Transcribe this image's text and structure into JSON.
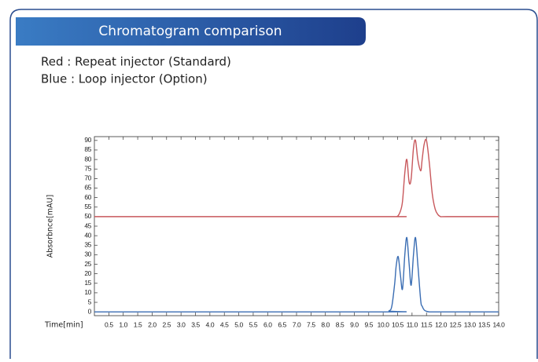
{
  "header": {
    "title": "Chromatogram comparison"
  },
  "legend_text": [
    "Red : Repeat injector (Standard)",
    "Blue : Loop injector (Option)"
  ],
  "chart_data": {
    "type": "line",
    "x_label": "Time[min]",
    "y_label": "Absorbnce[mAU]",
    "x": [
      0,
      10.0,
      10.2,
      10.3,
      10.4,
      10.45,
      10.52,
      10.6,
      10.67,
      10.75,
      10.82,
      10.9,
      10.97,
      11.05,
      11.12,
      11.2,
      11.3,
      11.35,
      11.42,
      11.5,
      11.6,
      11.7,
      11.8,
      11.9,
      12.0,
      12.2,
      14.0
    ],
    "series": [
      {
        "name": "Red",
        "color": "#c8585c",
        "values": [
          50,
          50,
          50,
          50,
          50,
          50,
          50.5,
          53,
          58,
          73,
          80,
          68,
          70,
          86,
          90,
          80,
          74,
          80,
          88,
          90,
          78,
          62,
          54,
          51,
          50,
          50,
          50
        ]
      },
      {
        "name": "Blue",
        "color": "#3a6db3",
        "values": [
          0,
          0,
          0.5,
          3,
          15,
          24,
          29,
          19,
          12,
          30,
          39,
          25,
          14,
          30,
          39,
          25,
          6,
          3,
          1,
          0.3,
          0,
          0,
          0,
          0,
          0,
          0,
          0
        ]
      }
    ],
    "xlim": [
      0,
      14
    ],
    "ylim": [
      -2,
      92
    ],
    "xticks": [
      0.5,
      {
        "value": 1,
        "label": "1.0"
      },
      1.5,
      {
        "value": 2,
        "label": "2.0"
      },
      2.5,
      {
        "value": 3,
        "label": "3.0"
      },
      3.5,
      {
        "value": 4,
        "label": "4.0"
      },
      4.5,
      {
        "value": 5,
        "label": "5.0"
      },
      5.5,
      {
        "value": 6,
        "label": "6.0"
      },
      6.5,
      {
        "value": 7,
        "label": "7.0"
      },
      7.5,
      {
        "value": 8,
        "label": "8.0"
      },
      8.5,
      {
        "value": 9,
        "label": "9.0"
      },
      9.5,
      {
        "value": 10,
        "label": "10.0"
      },
      10.5,
      {
        "value": 11,
        "label": "11.0"
      },
      11.5,
      {
        "value": 12,
        "label": "12.0"
      },
      12.5,
      {
        "value": 13,
        "label": "13.0"
      },
      13.5,
      {
        "value": 14,
        "label": "14.0"
      }
    ],
    "yticks": [
      0,
      5,
      10,
      15,
      20,
      25,
      30,
      35,
      40,
      45,
      50,
      55,
      60,
      65,
      70,
      75,
      80,
      85,
      90
    ]
  }
}
